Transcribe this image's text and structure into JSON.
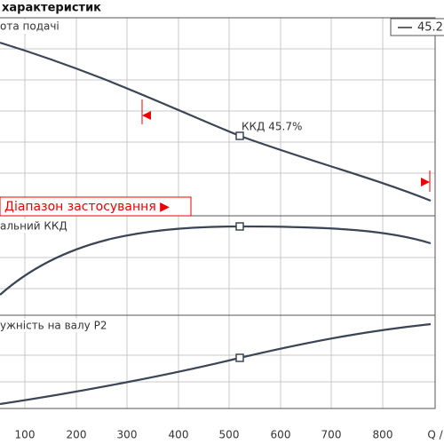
{
  "header": {
    "title": "характеристик"
  },
  "legend": {
    "label": "45.2"
  },
  "panels": [
    {
      "label": "ота подачі",
      "point_label": "ККД  45.7%",
      "range_label": "Діапазон застосування ▶"
    },
    {
      "label": "альний ККД"
    },
    {
      "label": "ужність на валу P2"
    }
  ],
  "x_axis": {
    "ticks": [
      "100",
      "200",
      "300",
      "400",
      "500",
      "600",
      "700",
      "800",
      "Q /"
    ]
  }
}
